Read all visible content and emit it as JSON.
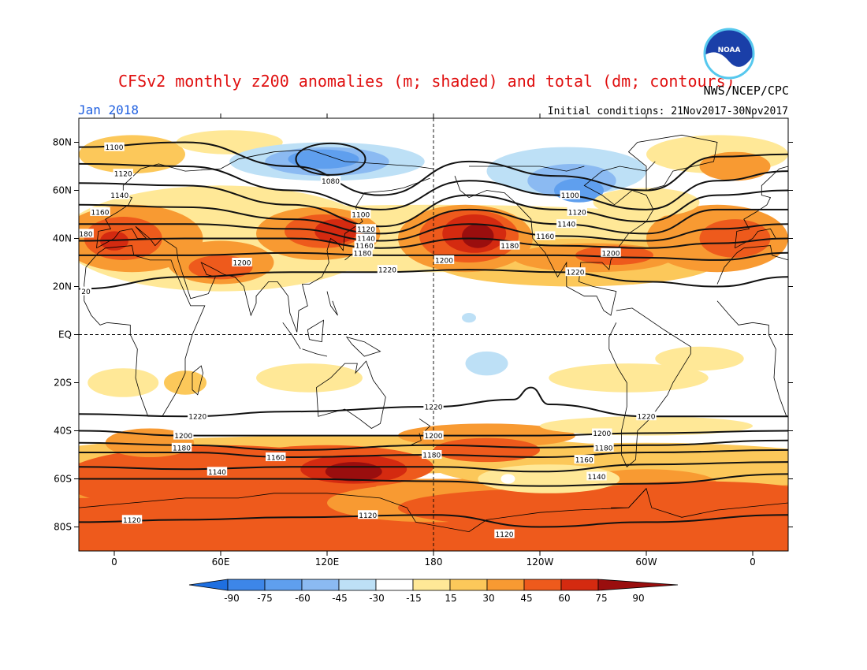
{
  "title": "CFSv2 monthly z200 anomalies (m; shaded) and total (dm; contours)",
  "agency": "NWS/NCEP/CPC",
  "logo_text": "NOAA",
  "valid_month": "Jan 2018",
  "initial_conditions": "Initial conditions: 21Nov2017-30Nov2017",
  "colors": {
    "neg90": "#1e6fe0",
    "neg75": "#3d86e8",
    "neg60": "#5f9fee",
    "neg45": "#8bbaf2",
    "neg30": "#bde0f6",
    "neg15": "#ffffff",
    "pos15": "#ffe897",
    "pos30": "#fcc85a",
    "pos45": "#f89a32",
    "pos60": "#ee5a1c",
    "pos75": "#d42a10",
    "pos90": "#9a0e0e"
  },
  "chart_data": {
    "type": "map",
    "lat_range": [
      -90,
      90
    ],
    "lon_range": [
      -20,
      380
    ],
    "lat_ticks": [
      "80N",
      "60N",
      "40N",
      "20N",
      "EQ",
      "20S",
      "40S",
      "60S",
      "80S"
    ],
    "lon_ticks": [
      "0",
      "60E",
      "120E",
      "180",
      "120W",
      "60W",
      "0"
    ],
    "colorbar_ticks": [
      "-90",
      "-75",
      "-60",
      "-45",
      "-30",
      "-15",
      "15",
      "30",
      "45",
      "60",
      "75",
      "90"
    ],
    "contour_labels": [
      {
        "text": "1100",
        "lon": 0,
        "lat": 78
      },
      {
        "text": "1120",
        "lon": 5,
        "lat": 67
      },
      {
        "text": "1140",
        "lon": 3,
        "lat": 58
      },
      {
        "text": "1160",
        "lon": -8,
        "lat": 51
      },
      {
        "text": "180",
        "lon": -16,
        "lat": 42
      },
      {
        "text": "1200",
        "lon": 72,
        "lat": 30
      },
      {
        "text": "20",
        "lon": -16,
        "lat": 18
      },
      {
        "text": "1080",
        "lon": 122,
        "lat": 64
      },
      {
        "text": "1100",
        "lon": 139,
        "lat": 50
      },
      {
        "text": "1120",
        "lon": 142,
        "lat": 44
      },
      {
        "text": "1140",
        "lon": 142,
        "lat": 40
      },
      {
        "text": "1160",
        "lon": 141,
        "lat": 37
      },
      {
        "text": "1180",
        "lon": 140,
        "lat": 34
      },
      {
        "text": "1220",
        "lon": 154,
        "lat": 27
      },
      {
        "text": "1200",
        "lon": 186,
        "lat": 31
      },
      {
        "text": "1100",
        "lon": 257,
        "lat": 58
      },
      {
        "text": "1120",
        "lon": 261,
        "lat": 51
      },
      {
        "text": "1140",
        "lon": 255,
        "lat": 46
      },
      {
        "text": "1160",
        "lon": 243,
        "lat": 41
      },
      {
        "text": "1180",
        "lon": 223,
        "lat": 37
      },
      {
        "text": "1200",
        "lon": 280,
        "lat": 34
      },
      {
        "text": "1220",
        "lon": 260,
        "lat": 26
      },
      {
        "text": "1220",
        "lon": 180,
        "lat": -30
      },
      {
        "text": "1220",
        "lon": 47,
        "lat": -34
      },
      {
        "text": "1220",
        "lon": 300,
        "lat": -34
      },
      {
        "text": "1200",
        "lon": 180,
        "lat": -42
      },
      {
        "text": "1200",
        "lon": 39,
        "lat": -42
      },
      {
        "text": "1200",
        "lon": 275,
        "lat": -41
      },
      {
        "text": "1180",
        "lon": 38,
        "lat": -47
      },
      {
        "text": "1180",
        "lon": 179,
        "lat": -50
      },
      {
        "text": "1180",
        "lon": 276,
        "lat": -47
      },
      {
        "text": "1160",
        "lon": 91,
        "lat": -51
      },
      {
        "text": "1160",
        "lon": 265,
        "lat": -52
      },
      {
        "text": "1140",
        "lon": 58,
        "lat": -57
      },
      {
        "text": "1140",
        "lon": 272,
        "lat": -59
      },
      {
        "text": "1120",
        "lon": 10,
        "lat": -77
      },
      {
        "text": "1120",
        "lon": 143,
        "lat": -75
      },
      {
        "text": "1120",
        "lon": 220,
        "lat": -83
      }
    ]
  }
}
